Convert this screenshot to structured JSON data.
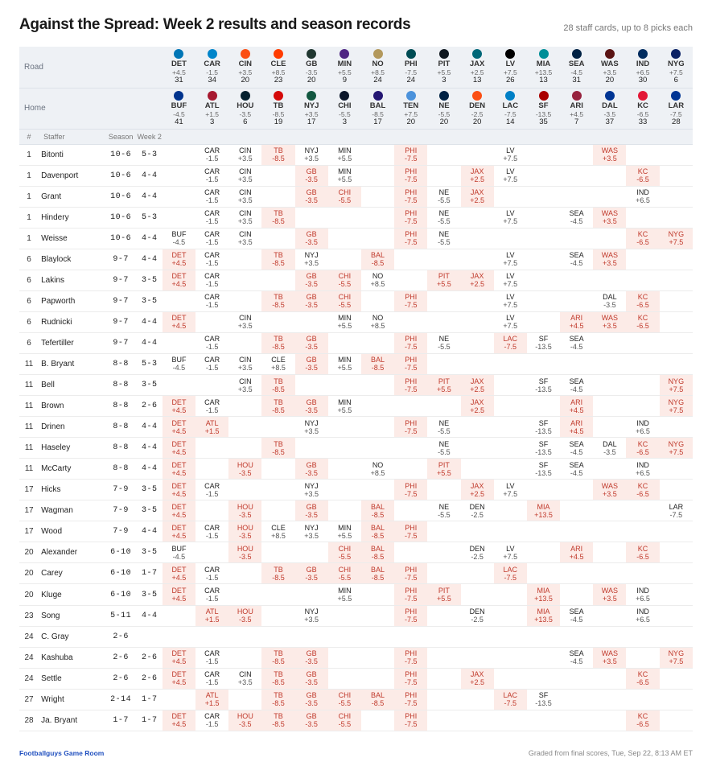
{
  "header": {
    "title": "Against the Spread: Week 2 results and season records",
    "subtitle": "28 staff cards, up to 8 picks each"
  },
  "labels": {
    "road": "Road",
    "home": "Home",
    "col_rank": "#",
    "col_staffer": "Staffer",
    "col_season": "Season",
    "col_week": "Week 2"
  },
  "games": [
    {
      "road": {
        "abbr": "DET",
        "spread": "+4.5",
        "score": "31",
        "color": "#0076B6"
      },
      "home": {
        "abbr": "BUF",
        "spread": "-4.5",
        "score": "41",
        "color": "#00338D"
      }
    },
    {
      "road": {
        "abbr": "CAR",
        "spread": "-1.5",
        "score": "34",
        "color": "#0085CA"
      },
      "home": {
        "abbr": "ATL",
        "spread": "+1.5",
        "score": "3",
        "color": "#A71930"
      }
    },
    {
      "road": {
        "abbr": "CIN",
        "spread": "+3.5",
        "score": "20",
        "color": "#FB4F14"
      },
      "home": {
        "abbr": "HOU",
        "spread": "-3.5",
        "score": "6",
        "color": "#03202F"
      }
    },
    {
      "road": {
        "abbr": "CLE",
        "spread": "+8.5",
        "score": "23",
        "color": "#FF3C00"
      },
      "home": {
        "abbr": "TB",
        "spread": "-8.5",
        "score": "19",
        "color": "#D50A0A"
      }
    },
    {
      "road": {
        "abbr": "GB",
        "spread": "-3.5",
        "score": "20",
        "color": "#203731"
      },
      "home": {
        "abbr": "NYJ",
        "spread": "+3.5",
        "score": "17",
        "color": "#125740"
      }
    },
    {
      "road": {
        "abbr": "MIN",
        "spread": "+5.5",
        "score": "9",
        "color": "#4F2683"
      },
      "home": {
        "abbr": "CHI",
        "spread": "-5.5",
        "score": "3",
        "color": "#0B162A"
      }
    },
    {
      "road": {
        "abbr": "NO",
        "spread": "+8.5",
        "score": "24",
        "color": "#B3995D"
      },
      "home": {
        "abbr": "BAL",
        "spread": "-8.5",
        "score": "17",
        "color": "#241773"
      }
    },
    {
      "road": {
        "abbr": "PHI",
        "spread": "-7.5",
        "score": "24",
        "color": "#004C54"
      },
      "home": {
        "abbr": "TEN",
        "spread": "+7.5",
        "score": "20",
        "color": "#4B92DB"
      }
    },
    {
      "road": {
        "abbr": "PIT",
        "spread": "+5.5",
        "score": "3",
        "color": "#101820"
      },
      "home": {
        "abbr": "NE",
        "spread": "-5.5",
        "score": "20",
        "color": "#002244"
      }
    },
    {
      "road": {
        "abbr": "JAX",
        "spread": "+2.5",
        "score": "13",
        "color": "#006778"
      },
      "home": {
        "abbr": "DEN",
        "spread": "-2.5",
        "score": "20",
        "color": "#FB4F14"
      }
    },
    {
      "road": {
        "abbr": "LV",
        "spread": "+7.5",
        "score": "26",
        "color": "#000000"
      },
      "home": {
        "abbr": "LAC",
        "spread": "-7.5",
        "score": "14",
        "color": "#0080C6"
      }
    },
    {
      "road": {
        "abbr": "MIA",
        "spread": "+13.5",
        "score": "13",
        "color": "#008E97"
      },
      "home": {
        "abbr": "SF",
        "spread": "-13.5",
        "score": "35",
        "color": "#AA0000"
      }
    },
    {
      "road": {
        "abbr": "SEA",
        "spread": "-4.5",
        "score": "31",
        "color": "#002244"
      },
      "home": {
        "abbr": "ARI",
        "spread": "+4.5",
        "score": "7",
        "color": "#97233F"
      }
    },
    {
      "road": {
        "abbr": "WAS",
        "spread": "+3.5",
        "score": "20",
        "color": "#5A1414"
      },
      "home": {
        "abbr": "DAL",
        "spread": "-3.5",
        "score": "37",
        "color": "#003594"
      }
    },
    {
      "road": {
        "abbr": "IND",
        "spread": "+6.5",
        "score": "30",
        "color": "#002C5F"
      },
      "home": {
        "abbr": "KC",
        "spread": "-6.5",
        "score": "33",
        "color": "#E31837"
      }
    },
    {
      "road": {
        "abbr": "NYG",
        "spread": "+7.5",
        "score": "6",
        "color": "#0B2265"
      },
      "home": {
        "abbr": "LAR",
        "spread": "-7.5",
        "score": "28",
        "color": "#003594"
      }
    }
  ],
  "staffers": [
    {
      "rank": "1",
      "name": "Bitonti",
      "season": "10-6",
      "week": "5-3",
      "picks": [
        "",
        "CAR -1.5",
        "CIN +3.5",
        "TB -8.5 L",
        "NYJ +3.5",
        "MIN +5.5",
        "",
        "PHI -7.5 L",
        "",
        "",
        "LV +7.5",
        "",
        "",
        "WAS +3.5 L",
        "",
        ""
      ]
    },
    {
      "rank": "1",
      "name": "Davenport",
      "season": "10-6",
      "week": "4-4",
      "picks": [
        "",
        "CAR -1.5",
        "CIN +3.5",
        "",
        "GB -3.5 L",
        "MIN +5.5",
        "",
        "PHI -7.5 L",
        "",
        "JAX +2.5 L",
        "LV +7.5",
        "",
        "",
        "",
        "KC -6.5 L",
        ""
      ]
    },
    {
      "rank": "1",
      "name": "Grant",
      "season": "10-6",
      "week": "4-4",
      "picks": [
        "",
        "CAR -1.5",
        "CIN +3.5",
        "",
        "GB -3.5 L",
        "CHI -5.5 L",
        "",
        "PHI -7.5 L",
        "NE -5.5",
        "JAX +2.5 L",
        "",
        "",
        "",
        "",
        "IND +6.5",
        ""
      ]
    },
    {
      "rank": "1",
      "name": "Hindery",
      "season": "10-6",
      "week": "5-3",
      "picks": [
        "",
        "CAR -1.5",
        "CIN +3.5",
        "TB -8.5 L",
        "",
        "",
        "",
        "PHI -7.5 L",
        "NE -5.5",
        "",
        "LV +7.5",
        "",
        "SEA -4.5",
        "WAS +3.5 L",
        "",
        ""
      ]
    },
    {
      "rank": "1",
      "name": "Weisse",
      "season": "10-6",
      "week": "4-4",
      "picks": [
        "BUF -4.5",
        "CAR -1.5",
        "CIN +3.5",
        "",
        "GB -3.5 L",
        "",
        "",
        "PHI -7.5 L",
        "NE -5.5",
        "",
        "",
        "",
        "",
        "",
        "KC -6.5 L",
        "NYG +7.5 L"
      ]
    },
    {
      "rank": "6",
      "name": "Blaylock",
      "season": "9-7",
      "week": "4-4",
      "picks": [
        "DET +4.5 L",
        "CAR -1.5",
        "",
        "TB -8.5 L",
        "NYJ +3.5",
        "",
        "BAL -8.5 L",
        "",
        "",
        "",
        "LV +7.5",
        "",
        "SEA -4.5",
        "WAS +3.5 L",
        "",
        ""
      ]
    },
    {
      "rank": "6",
      "name": "Lakins",
      "season": "9-7",
      "week": "3-5",
      "picks": [
        "DET +4.5 L",
        "CAR -1.5",
        "",
        "",
        "GB -3.5 L",
        "CHI -5.5 L",
        "NO +8.5",
        "",
        "PIT +5.5 L",
        "JAX +2.5 L",
        "LV +7.5",
        "",
        "",
        "",
        "",
        ""
      ]
    },
    {
      "rank": "6",
      "name": "Papworth",
      "season": "9-7",
      "week": "3-5",
      "picks": [
        "",
        "CAR -1.5",
        "",
        "TB -8.5 L",
        "GB -3.5 L",
        "CHI -5.5 L",
        "",
        "PHI -7.5 L",
        "",
        "",
        "LV +7.5",
        "",
        "",
        "DAL -3.5",
        "KC -6.5 L",
        ""
      ]
    },
    {
      "rank": "6",
      "name": "Rudnicki",
      "season": "9-7",
      "week": "4-4",
      "picks": [
        "DET +4.5 L",
        "",
        "CIN +3.5",
        "",
        "",
        "MIN +5.5",
        "NO +8.5",
        "",
        "",
        "",
        "LV +7.5",
        "",
        "ARI +4.5 L",
        "WAS +3.5 L",
        "KC -6.5 L",
        ""
      ]
    },
    {
      "rank": "6",
      "name": "Tefertiller",
      "season": "9-7",
      "week": "4-4",
      "picks": [
        "",
        "CAR -1.5",
        "",
        "TB -8.5 L",
        "GB -3.5 L",
        "",
        "",
        "PHI -7.5 L",
        "NE -5.5",
        "",
        "LAC -7.5 L",
        "SF -13.5",
        "SEA -4.5",
        "",
        "",
        ""
      ]
    },
    {
      "rank": "11",
      "name": "B. Bryant",
      "season": "8-8",
      "week": "5-3",
      "picks": [
        "BUF -4.5",
        "CAR -1.5",
        "CIN +3.5",
        "CLE +8.5",
        "GB -3.5 L",
        "MIN +5.5",
        "BAL -8.5 L",
        "PHI -7.5 L",
        "",
        "",
        "",
        "",
        "",
        "",
        "",
        ""
      ]
    },
    {
      "rank": "11",
      "name": "Bell",
      "season": "8-8",
      "week": "3-5",
      "picks": [
        "",
        "",
        "CIN +3.5",
        "TB -8.5 L",
        "",
        "",
        "",
        "PHI -7.5 L",
        "PIT +5.5 L",
        "JAX +2.5 L",
        "",
        "SF -13.5",
        "SEA -4.5",
        "",
        "",
        "NYG +7.5 L"
      ]
    },
    {
      "rank": "11",
      "name": "Brown",
      "season": "8-8",
      "week": "2-6",
      "picks": [
        "DET +4.5 L",
        "CAR -1.5",
        "",
        "TB -8.5 L",
        "GB -3.5 L",
        "MIN +5.5",
        "",
        "",
        "",
        "JAX +2.5 L",
        "",
        "",
        "ARI +4.5 L",
        "",
        "",
        "NYG +7.5 L"
      ]
    },
    {
      "rank": "11",
      "name": "Drinen",
      "season": "8-8",
      "week": "4-4",
      "picks": [
        "DET +4.5 L",
        "ATL +1.5 L",
        "",
        "",
        "NYJ +3.5",
        "",
        "",
        "PHI -7.5 L",
        "NE -5.5",
        "",
        "",
        "SF -13.5",
        "ARI +4.5 L",
        "",
        "IND +6.5",
        ""
      ]
    },
    {
      "rank": "11",
      "name": "Haseley",
      "season": "8-8",
      "week": "4-4",
      "picks": [
        "DET +4.5 L",
        "",
        "",
        "TB -8.5 L",
        "",
        "",
        "",
        "",
        "NE -5.5",
        "",
        "",
        "SF -13.5",
        "SEA -4.5",
        "DAL -3.5",
        "KC -6.5 L",
        "NYG +7.5 L"
      ]
    },
    {
      "rank": "11",
      "name": "McCarty",
      "season": "8-8",
      "week": "4-4",
      "picks": [
        "DET +4.5 L",
        "",
        "HOU -3.5 L",
        "",
        "GB -3.5 L",
        "",
        "NO +8.5",
        "",
        "PIT +5.5 L",
        "",
        "",
        "SF -13.5",
        "SEA -4.5",
        "",
        "IND +6.5",
        ""
      ]
    },
    {
      "rank": "17",
      "name": "Hicks",
      "season": "7-9",
      "week": "3-5",
      "picks": [
        "DET +4.5 L",
        "CAR -1.5",
        "",
        "",
        "NYJ +3.5",
        "",
        "",
        "PHI -7.5 L",
        "",
        "JAX +2.5 L",
        "LV +7.5",
        "",
        "",
        "WAS +3.5 L",
        "KC -6.5 L",
        ""
      ]
    },
    {
      "rank": "17",
      "name": "Wagman",
      "season": "7-9",
      "week": "3-5",
      "picks": [
        "DET +4.5 L",
        "",
        "HOU -3.5 L",
        "",
        "GB -3.5 L",
        "",
        "BAL -8.5 L",
        "",
        "NE -5.5",
        "DEN -2.5",
        "",
        "MIA +13.5 L",
        "",
        "",
        "",
        "LAR -7.5"
      ]
    },
    {
      "rank": "17",
      "name": "Wood",
      "season": "7-9",
      "week": "4-4",
      "picks": [
        "DET +4.5 L",
        "CAR -1.5",
        "HOU -3.5 L",
        "CLE +8.5",
        "NYJ +3.5",
        "MIN +5.5",
        "BAL -8.5 L",
        "PHI -7.5 L",
        "",
        "",
        "",
        "",
        "",
        "",
        "",
        ""
      ]
    },
    {
      "rank": "20",
      "name": "Alexander",
      "season": "6-10",
      "week": "3-5",
      "picks": [
        "BUF -4.5",
        "",
        "HOU -3.5 L",
        "",
        "",
        "CHI -5.5 L",
        "BAL -8.5 L",
        "",
        "",
        "DEN -2.5",
        "LV +7.5",
        "",
        "ARI +4.5 L",
        "",
        "KC -6.5 L",
        ""
      ]
    },
    {
      "rank": "20",
      "name": "Carey",
      "season": "6-10",
      "week": "1-7",
      "picks": [
        "DET +4.5 L",
        "CAR -1.5",
        "",
        "TB -8.5 L",
        "GB -3.5 L",
        "CHI -5.5 L",
        "BAL -8.5 L",
        "PHI -7.5 L",
        "",
        "",
        "LAC -7.5 L",
        "",
        "",
        "",
        "",
        ""
      ]
    },
    {
      "rank": "20",
      "name": "Kluge",
      "season": "6-10",
      "week": "3-5",
      "picks": [
        "DET +4.5 L",
        "CAR -1.5",
        "",
        "",
        "",
        "MIN +5.5",
        "",
        "PHI -7.5 L",
        "PIT +5.5 L",
        "",
        "",
        "MIA +13.5 L",
        "",
        "WAS +3.5 L",
        "IND +6.5",
        ""
      ]
    },
    {
      "rank": "23",
      "name": "Song",
      "season": "5-11",
      "week": "4-4",
      "picks": [
        "",
        "ATL +1.5 L",
        "HOU -3.5 L",
        "",
        "NYJ +3.5",
        "",
        "",
        "PHI -7.5 L",
        "",
        "DEN -2.5",
        "",
        "MIA +13.5 L",
        "SEA -4.5",
        "",
        "IND +6.5",
        ""
      ]
    },
    {
      "rank": "24",
      "name": "C. Gray",
      "season": "2-6",
      "week": "",
      "picks": [
        "",
        "",
        "",
        "",
        "",
        "",
        "",
        "",
        "",
        "",
        "",
        "",
        "",
        "",
        "",
        ""
      ]
    },
    {
      "rank": "24",
      "name": "Kashuba",
      "season": "2-6",
      "week": "2-6",
      "picks": [
        "DET +4.5 L",
        "CAR -1.5",
        "",
        "TB -8.5 L",
        "GB -3.5 L",
        "",
        "",
        "PHI -7.5 L",
        "",
        "",
        "",
        "",
        "SEA -4.5",
        "WAS +3.5 L",
        "",
        "NYG +7.5 L"
      ]
    },
    {
      "rank": "24",
      "name": "Settle",
      "season": "2-6",
      "week": "2-6",
      "picks": [
        "DET +4.5 L",
        "CAR -1.5",
        "CIN +3.5",
        "TB -8.5 L",
        "GB -3.5 L",
        "",
        "",
        "PHI -7.5 L",
        "",
        "JAX +2.5 L",
        "",
        "",
        "",
        "",
        "KC -6.5 L",
        ""
      ]
    },
    {
      "rank": "27",
      "name": "Wright",
      "season": "2-14",
      "week": "1-7",
      "picks": [
        "",
        "ATL +1.5 L",
        "",
        "TB -8.5 L",
        "GB -3.5 L",
        "CHI -5.5 L",
        "BAL -8.5 L",
        "PHI -7.5 L",
        "",
        "",
        "LAC -7.5 L",
        "SF -13.5",
        "",
        "",
        "",
        ""
      ]
    },
    {
      "rank": "28",
      "name": "Ja. Bryant",
      "season": "1-7",
      "week": "1-7",
      "picks": [
        "DET +4.5 L",
        "CAR -1.5",
        "HOU -3.5 L",
        "TB -8.5 L",
        "GB -3.5 L",
        "CHI -5.5 L",
        "",
        "PHI -7.5 L",
        "",
        "",
        "",
        "",
        "",
        "",
        "KC -6.5 L",
        ""
      ]
    }
  ],
  "footer": {
    "left": "Footballguys Game Room",
    "right": "Graded from final scores, Tue, Sep 22, 8:13 AM ET"
  }
}
